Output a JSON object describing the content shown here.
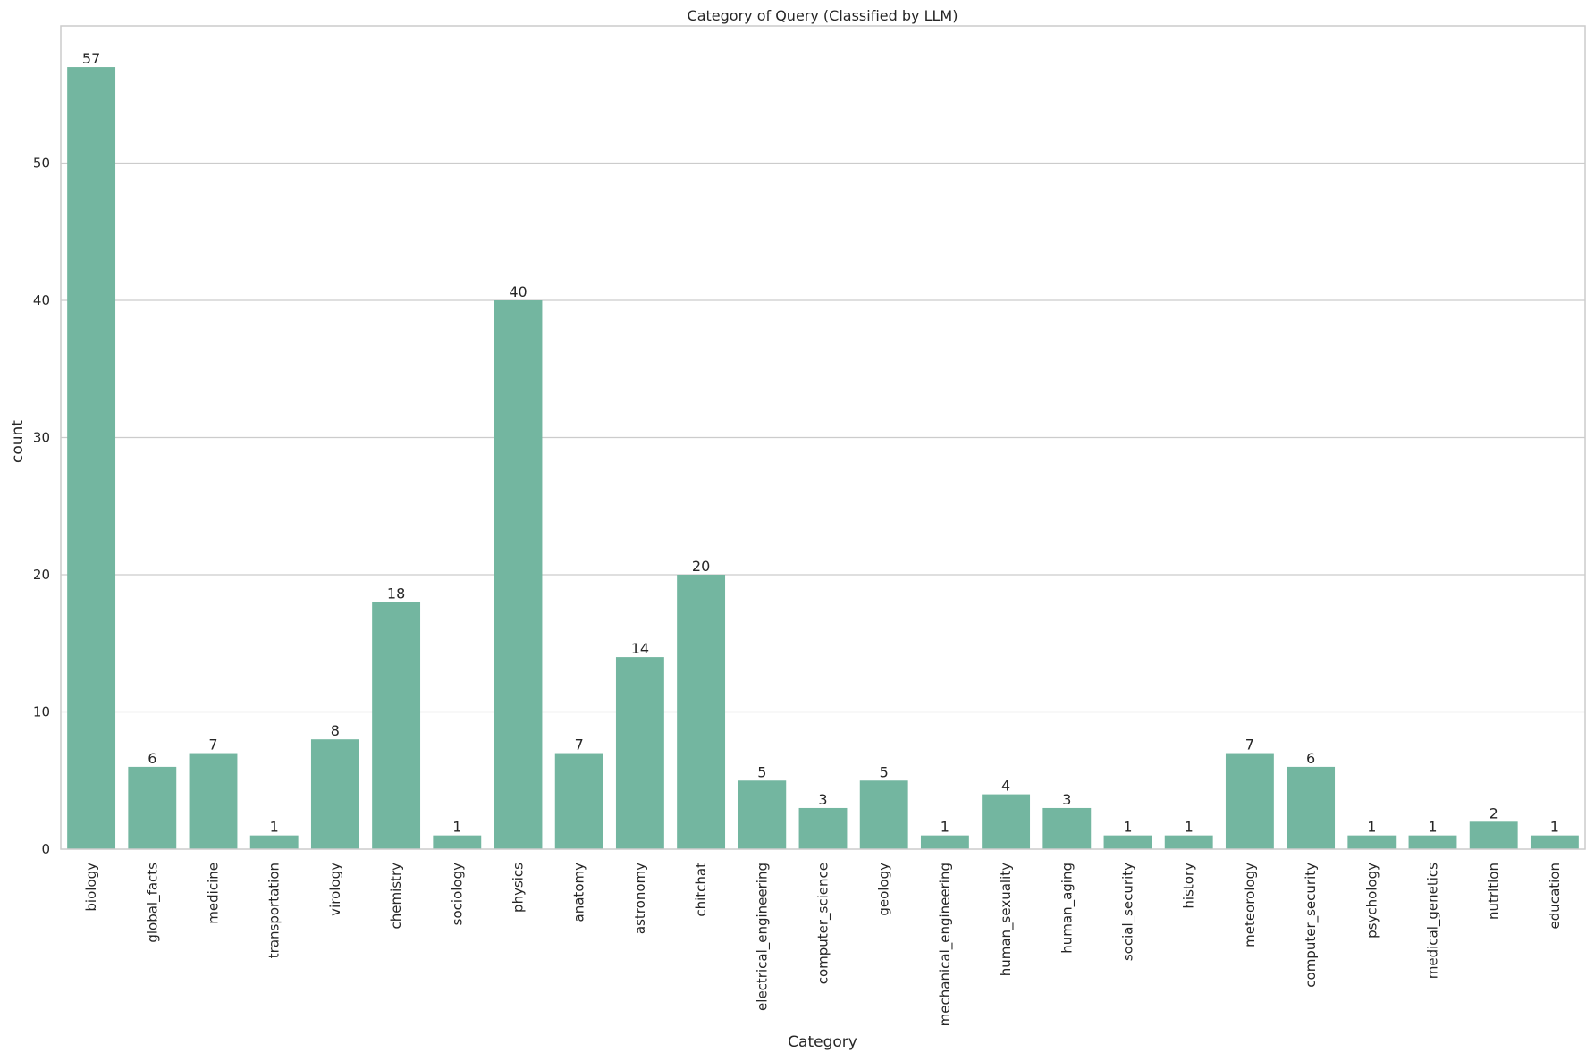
{
  "chart_data": {
    "type": "bar",
    "title": "Category of Query (Classified by LLM)",
    "xlabel": "Category",
    "ylabel": "count",
    "ylim": [
      0,
      60
    ],
    "yticks": [
      0,
      10,
      20,
      30,
      40,
      50
    ],
    "grid": true,
    "bar_color": "#73b6a0",
    "categories": [
      "biology",
      "global_facts",
      "medicine",
      "transportation",
      "virology",
      "chemistry",
      "sociology",
      "physics",
      "anatomy",
      "astronomy",
      "chitchat",
      "electrical_engineering",
      "computer_science",
      "geology",
      "mechanical_engineering",
      "human_sexuality",
      "human_aging",
      "social_security",
      "history",
      "meteorology",
      "computer_security",
      "psychology",
      "medical_genetics",
      "nutrition",
      "education"
    ],
    "values": [
      57,
      6,
      7,
      1,
      8,
      18,
      1,
      40,
      7,
      14,
      20,
      5,
      3,
      5,
      1,
      4,
      3,
      1,
      1,
      7,
      6,
      1,
      1,
      2,
      1
    ]
  }
}
